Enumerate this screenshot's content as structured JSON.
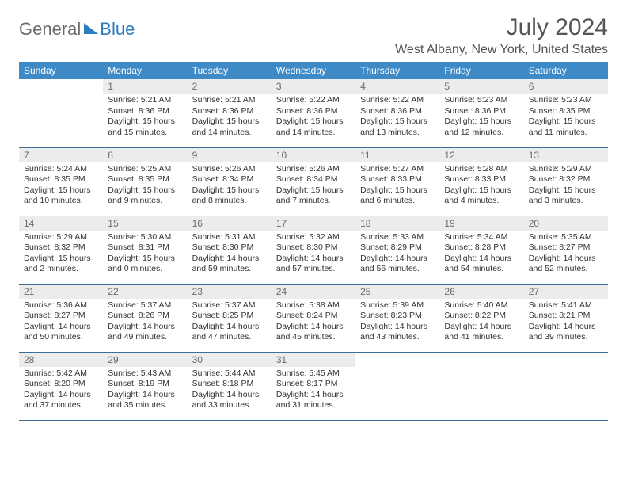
{
  "logo": {
    "part1": "General",
    "part2": "Blue"
  },
  "title": "July 2024",
  "location": "West Albany, New York, United States",
  "colors": {
    "header_bg": "#3d8ac7",
    "header_text": "#ffffff",
    "daynum_bg": "#ececec",
    "daynum_text": "#6b6b6b",
    "border": "#3d6f9e",
    "body_text": "#333333",
    "logo_gray": "#6b6b6b",
    "logo_blue": "#2f7bbf"
  },
  "weekdays": [
    "Sunday",
    "Monday",
    "Tuesday",
    "Wednesday",
    "Thursday",
    "Friday",
    "Saturday"
  ],
  "weeks": [
    [
      {
        "n": "",
        "sr": "",
        "ss": "",
        "dl": ""
      },
      {
        "n": "1",
        "sr": "Sunrise: 5:21 AM",
        "ss": "Sunset: 8:36 PM",
        "dl": "Daylight: 15 hours and 15 minutes."
      },
      {
        "n": "2",
        "sr": "Sunrise: 5:21 AM",
        "ss": "Sunset: 8:36 PM",
        "dl": "Daylight: 15 hours and 14 minutes."
      },
      {
        "n": "3",
        "sr": "Sunrise: 5:22 AM",
        "ss": "Sunset: 8:36 PM",
        "dl": "Daylight: 15 hours and 14 minutes."
      },
      {
        "n": "4",
        "sr": "Sunrise: 5:22 AM",
        "ss": "Sunset: 8:36 PM",
        "dl": "Daylight: 15 hours and 13 minutes."
      },
      {
        "n": "5",
        "sr": "Sunrise: 5:23 AM",
        "ss": "Sunset: 8:36 PM",
        "dl": "Daylight: 15 hours and 12 minutes."
      },
      {
        "n": "6",
        "sr": "Sunrise: 5:23 AM",
        "ss": "Sunset: 8:35 PM",
        "dl": "Daylight: 15 hours and 11 minutes."
      }
    ],
    [
      {
        "n": "7",
        "sr": "Sunrise: 5:24 AM",
        "ss": "Sunset: 8:35 PM",
        "dl": "Daylight: 15 hours and 10 minutes."
      },
      {
        "n": "8",
        "sr": "Sunrise: 5:25 AM",
        "ss": "Sunset: 8:35 PM",
        "dl": "Daylight: 15 hours and 9 minutes."
      },
      {
        "n": "9",
        "sr": "Sunrise: 5:26 AM",
        "ss": "Sunset: 8:34 PM",
        "dl": "Daylight: 15 hours and 8 minutes."
      },
      {
        "n": "10",
        "sr": "Sunrise: 5:26 AM",
        "ss": "Sunset: 8:34 PM",
        "dl": "Daylight: 15 hours and 7 minutes."
      },
      {
        "n": "11",
        "sr": "Sunrise: 5:27 AM",
        "ss": "Sunset: 8:33 PM",
        "dl": "Daylight: 15 hours and 6 minutes."
      },
      {
        "n": "12",
        "sr": "Sunrise: 5:28 AM",
        "ss": "Sunset: 8:33 PM",
        "dl": "Daylight: 15 hours and 4 minutes."
      },
      {
        "n": "13",
        "sr": "Sunrise: 5:29 AM",
        "ss": "Sunset: 8:32 PM",
        "dl": "Daylight: 15 hours and 3 minutes."
      }
    ],
    [
      {
        "n": "14",
        "sr": "Sunrise: 5:29 AM",
        "ss": "Sunset: 8:32 PM",
        "dl": "Daylight: 15 hours and 2 minutes."
      },
      {
        "n": "15",
        "sr": "Sunrise: 5:30 AM",
        "ss": "Sunset: 8:31 PM",
        "dl": "Daylight: 15 hours and 0 minutes."
      },
      {
        "n": "16",
        "sr": "Sunrise: 5:31 AM",
        "ss": "Sunset: 8:30 PM",
        "dl": "Daylight: 14 hours and 59 minutes."
      },
      {
        "n": "17",
        "sr": "Sunrise: 5:32 AM",
        "ss": "Sunset: 8:30 PM",
        "dl": "Daylight: 14 hours and 57 minutes."
      },
      {
        "n": "18",
        "sr": "Sunrise: 5:33 AM",
        "ss": "Sunset: 8:29 PM",
        "dl": "Daylight: 14 hours and 56 minutes."
      },
      {
        "n": "19",
        "sr": "Sunrise: 5:34 AM",
        "ss": "Sunset: 8:28 PM",
        "dl": "Daylight: 14 hours and 54 minutes."
      },
      {
        "n": "20",
        "sr": "Sunrise: 5:35 AM",
        "ss": "Sunset: 8:27 PM",
        "dl": "Daylight: 14 hours and 52 minutes."
      }
    ],
    [
      {
        "n": "21",
        "sr": "Sunrise: 5:36 AM",
        "ss": "Sunset: 8:27 PM",
        "dl": "Daylight: 14 hours and 50 minutes."
      },
      {
        "n": "22",
        "sr": "Sunrise: 5:37 AM",
        "ss": "Sunset: 8:26 PM",
        "dl": "Daylight: 14 hours and 49 minutes."
      },
      {
        "n": "23",
        "sr": "Sunrise: 5:37 AM",
        "ss": "Sunset: 8:25 PM",
        "dl": "Daylight: 14 hours and 47 minutes."
      },
      {
        "n": "24",
        "sr": "Sunrise: 5:38 AM",
        "ss": "Sunset: 8:24 PM",
        "dl": "Daylight: 14 hours and 45 minutes."
      },
      {
        "n": "25",
        "sr": "Sunrise: 5:39 AM",
        "ss": "Sunset: 8:23 PM",
        "dl": "Daylight: 14 hours and 43 minutes."
      },
      {
        "n": "26",
        "sr": "Sunrise: 5:40 AM",
        "ss": "Sunset: 8:22 PM",
        "dl": "Daylight: 14 hours and 41 minutes."
      },
      {
        "n": "27",
        "sr": "Sunrise: 5:41 AM",
        "ss": "Sunset: 8:21 PM",
        "dl": "Daylight: 14 hours and 39 minutes."
      }
    ],
    [
      {
        "n": "28",
        "sr": "Sunrise: 5:42 AM",
        "ss": "Sunset: 8:20 PM",
        "dl": "Daylight: 14 hours and 37 minutes."
      },
      {
        "n": "29",
        "sr": "Sunrise: 5:43 AM",
        "ss": "Sunset: 8:19 PM",
        "dl": "Daylight: 14 hours and 35 minutes."
      },
      {
        "n": "30",
        "sr": "Sunrise: 5:44 AM",
        "ss": "Sunset: 8:18 PM",
        "dl": "Daylight: 14 hours and 33 minutes."
      },
      {
        "n": "31",
        "sr": "Sunrise: 5:45 AM",
        "ss": "Sunset: 8:17 PM",
        "dl": "Daylight: 14 hours and 31 minutes."
      },
      {
        "n": "",
        "sr": "",
        "ss": "",
        "dl": ""
      },
      {
        "n": "",
        "sr": "",
        "ss": "",
        "dl": ""
      },
      {
        "n": "",
        "sr": "",
        "ss": "",
        "dl": ""
      }
    ]
  ]
}
